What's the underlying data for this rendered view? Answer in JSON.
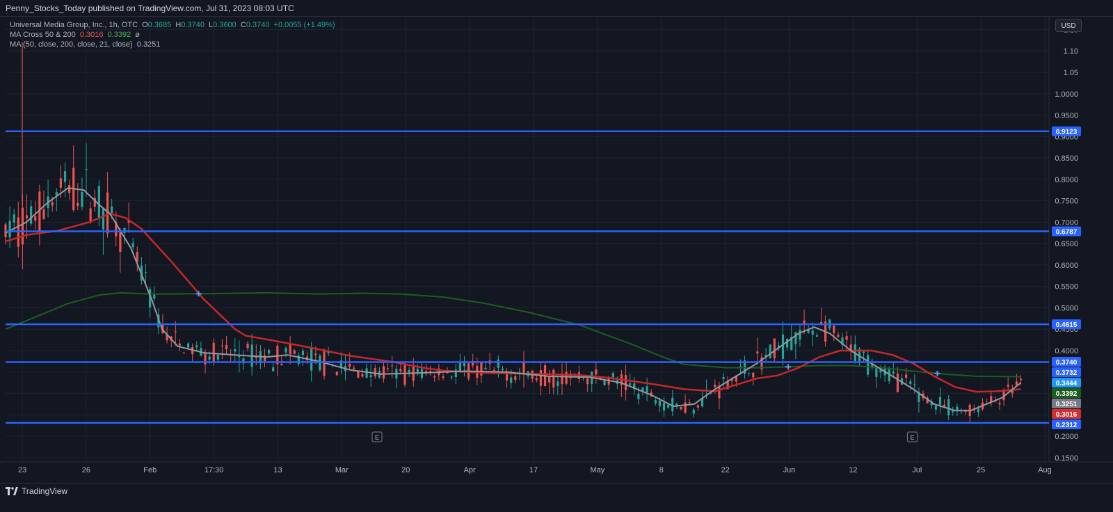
{
  "header": {
    "published": "Penny_Stocks_Today published on TradingView.com, Jul 31, 2023 08:03 UTC"
  },
  "legend": {
    "title": "Universal Media Group, Inc., 1h, OTC",
    "o_label": "O",
    "o": "0.3685",
    "h_label": "H",
    "h": "0.3740",
    "l_label": "L",
    "l": "0.3600",
    "c_label": "C",
    "c": "0.3740",
    "change": "+0.0055 (+1.49%)",
    "macross_label": "MA Cross 50 & 200",
    "macross_v1": "0.3016",
    "macross_v2": "0.3392",
    "macross_v3": "ø",
    "ma_label": "MA (50, close, 200, close, 21, close)",
    "ma_val": "0.3251"
  },
  "currency_button": "USD",
  "footer": {
    "brand": "TradingView"
  },
  "colors": {
    "background": "#131722",
    "grid": "#1f2330",
    "up": "#26a69a",
    "down": "#ef5350",
    "ma50": "#c62828",
    "ma200": "#1b5e20",
    "ma21": "#9598a1",
    "levels": "#2962ff"
  },
  "chart_data": {
    "type": "candlestick",
    "symbol": "Universal Media Group, Inc.",
    "timeframe": "1h",
    "exchange": "OTC",
    "currency": "USD",
    "ylim": [
      0.14,
      1.18
    ],
    "y_ticks": [
      "0.1500",
      "0.2000",
      "0.2500",
      "0.3000",
      "0.3500",
      "0.4000",
      "0.4500",
      "0.5000",
      "0.5500",
      "0.6000",
      "0.6500",
      "0.7000",
      "0.7500",
      "0.8000",
      "0.8500",
      "0.9000",
      "0.9500",
      "1.0000",
      "1.05",
      "1.10",
      "1.15"
    ],
    "x_ticks": [
      "23",
      "26",
      "Feb",
      "17:30",
      "13",
      "Mar",
      "20",
      "Apr",
      "17",
      "May",
      "8",
      "22",
      "Jun",
      "12",
      "Jul",
      "25",
      "Aug"
    ],
    "earnings_markers": [
      "E",
      "E"
    ],
    "horizontal_levels": [
      0.9123,
      0.6787,
      0.4615,
      0.3732,
      0.2312
    ],
    "price_tags": [
      {
        "label": "0.9123",
        "value": 0.9123,
        "color": "#2962ff"
      },
      {
        "label": "0.6787",
        "value": 0.6787,
        "color": "#2962ff"
      },
      {
        "label": "0.4615",
        "value": 0.4615,
        "color": "#2962ff"
      },
      {
        "label": "0.3740",
        "value": 0.374,
        "color": "#2962ff"
      },
      {
        "label": "0.3732",
        "value": 0.3732,
        "color": "#2962ff"
      },
      {
        "label": "0.3444",
        "value": 0.3444,
        "color": "#2196f3"
      },
      {
        "label": "0.3392",
        "value": 0.3392,
        "color": "#1b5e20"
      },
      {
        "label": "0.3251",
        "value": 0.3251,
        "color": "#787b86"
      },
      {
        "label": "0.3016",
        "value": 0.3016,
        "color": "#d32f2f"
      },
      {
        "label": "0.2312",
        "value": 0.2312,
        "color": "#2962ff"
      }
    ],
    "ma50": [
      [
        0,
        0.655
      ],
      [
        0.02,
        0.67
      ],
      [
        0.05,
        0.68
      ],
      [
        0.08,
        0.7
      ],
      [
        0.1,
        0.72
      ],
      [
        0.115,
        0.71
      ],
      [
        0.13,
        0.685
      ],
      [
        0.16,
        0.605
      ],
      [
        0.19,
        0.52
      ],
      [
        0.22,
        0.45
      ],
      [
        0.23,
        0.435
      ],
      [
        0.26,
        0.422
      ],
      [
        0.29,
        0.408
      ],
      [
        0.33,
        0.388
      ],
      [
        0.37,
        0.374
      ],
      [
        0.4,
        0.36
      ],
      [
        0.42,
        0.353
      ],
      [
        0.46,
        0.348
      ],
      [
        0.5,
        0.346
      ],
      [
        0.55,
        0.343
      ],
      [
        0.58,
        0.336
      ],
      [
        0.62,
        0.322
      ],
      [
        0.65,
        0.31
      ],
      [
        0.68,
        0.305
      ],
      [
        0.7,
        0.32
      ],
      [
        0.72,
        0.335
      ],
      [
        0.74,
        0.342
      ],
      [
        0.76,
        0.36
      ],
      [
        0.78,
        0.385
      ],
      [
        0.8,
        0.4
      ],
      [
        0.83,
        0.4
      ],
      [
        0.85,
        0.39
      ],
      [
        0.87,
        0.37
      ],
      [
        0.89,
        0.34
      ],
      [
        0.91,
        0.315
      ],
      [
        0.93,
        0.304
      ],
      [
        0.95,
        0.305
      ],
      [
        0.973,
        0.31
      ]
    ],
    "ma200": [
      [
        0,
        0.45
      ],
      [
        0.03,
        0.48
      ],
      [
        0.06,
        0.51
      ],
      [
        0.09,
        0.53
      ],
      [
        0.11,
        0.535
      ],
      [
        0.14,
        0.532
      ],
      [
        0.19,
        0.533
      ],
      [
        0.25,
        0.535
      ],
      [
        0.3,
        0.532
      ],
      [
        0.34,
        0.534
      ],
      [
        0.38,
        0.532
      ],
      [
        0.42,
        0.525
      ],
      [
        0.46,
        0.51
      ],
      [
        0.5,
        0.49
      ],
      [
        0.55,
        0.46
      ],
      [
        0.6,
        0.415
      ],
      [
        0.63,
        0.385
      ],
      [
        0.65,
        0.368
      ],
      [
        0.69,
        0.36
      ],
      [
        0.72,
        0.36
      ],
      [
        0.75,
        0.362
      ],
      [
        0.78,
        0.365
      ],
      [
        0.81,
        0.365
      ],
      [
        0.84,
        0.36
      ],
      [
        0.87,
        0.352
      ],
      [
        0.9,
        0.345
      ],
      [
        0.93,
        0.34
      ],
      [
        0.973,
        0.339
      ]
    ],
    "ma21": [
      [
        0,
        0.675
      ],
      [
        0.02,
        0.7
      ],
      [
        0.04,
        0.745
      ],
      [
        0.06,
        0.78
      ],
      [
        0.075,
        0.775
      ],
      [
        0.09,
        0.74
      ],
      [
        0.1,
        0.72
      ],
      [
        0.12,
        0.64
      ],
      [
        0.14,
        0.52
      ],
      [
        0.15,
        0.45
      ],
      [
        0.165,
        0.41
      ],
      [
        0.19,
        0.395
      ],
      [
        0.22,
        0.39
      ],
      [
        0.25,
        0.385
      ],
      [
        0.27,
        0.39
      ],
      [
        0.3,
        0.375
      ],
      [
        0.33,
        0.355
      ],
      [
        0.36,
        0.345
      ],
      [
        0.4,
        0.348
      ],
      [
        0.44,
        0.352
      ],
      [
        0.48,
        0.35
      ],
      [
        0.52,
        0.34
      ],
      [
        0.56,
        0.338
      ],
      [
        0.59,
        0.325
      ],
      [
        0.62,
        0.295
      ],
      [
        0.64,
        0.27
      ],
      [
        0.66,
        0.275
      ],
      [
        0.68,
        0.31
      ],
      [
        0.7,
        0.34
      ],
      [
        0.72,
        0.37
      ],
      [
        0.74,
        0.405
      ],
      [
        0.76,
        0.44
      ],
      [
        0.775,
        0.455
      ],
      [
        0.79,
        0.44
      ],
      [
        0.81,
        0.4
      ],
      [
        0.83,
        0.37
      ],
      [
        0.85,
        0.34
      ],
      [
        0.87,
        0.31
      ],
      [
        0.89,
        0.275
      ],
      [
        0.91,
        0.26
      ],
      [
        0.925,
        0.26
      ],
      [
        0.94,
        0.275
      ],
      [
        0.955,
        0.29
      ],
      [
        0.973,
        0.325
      ]
    ]
  }
}
